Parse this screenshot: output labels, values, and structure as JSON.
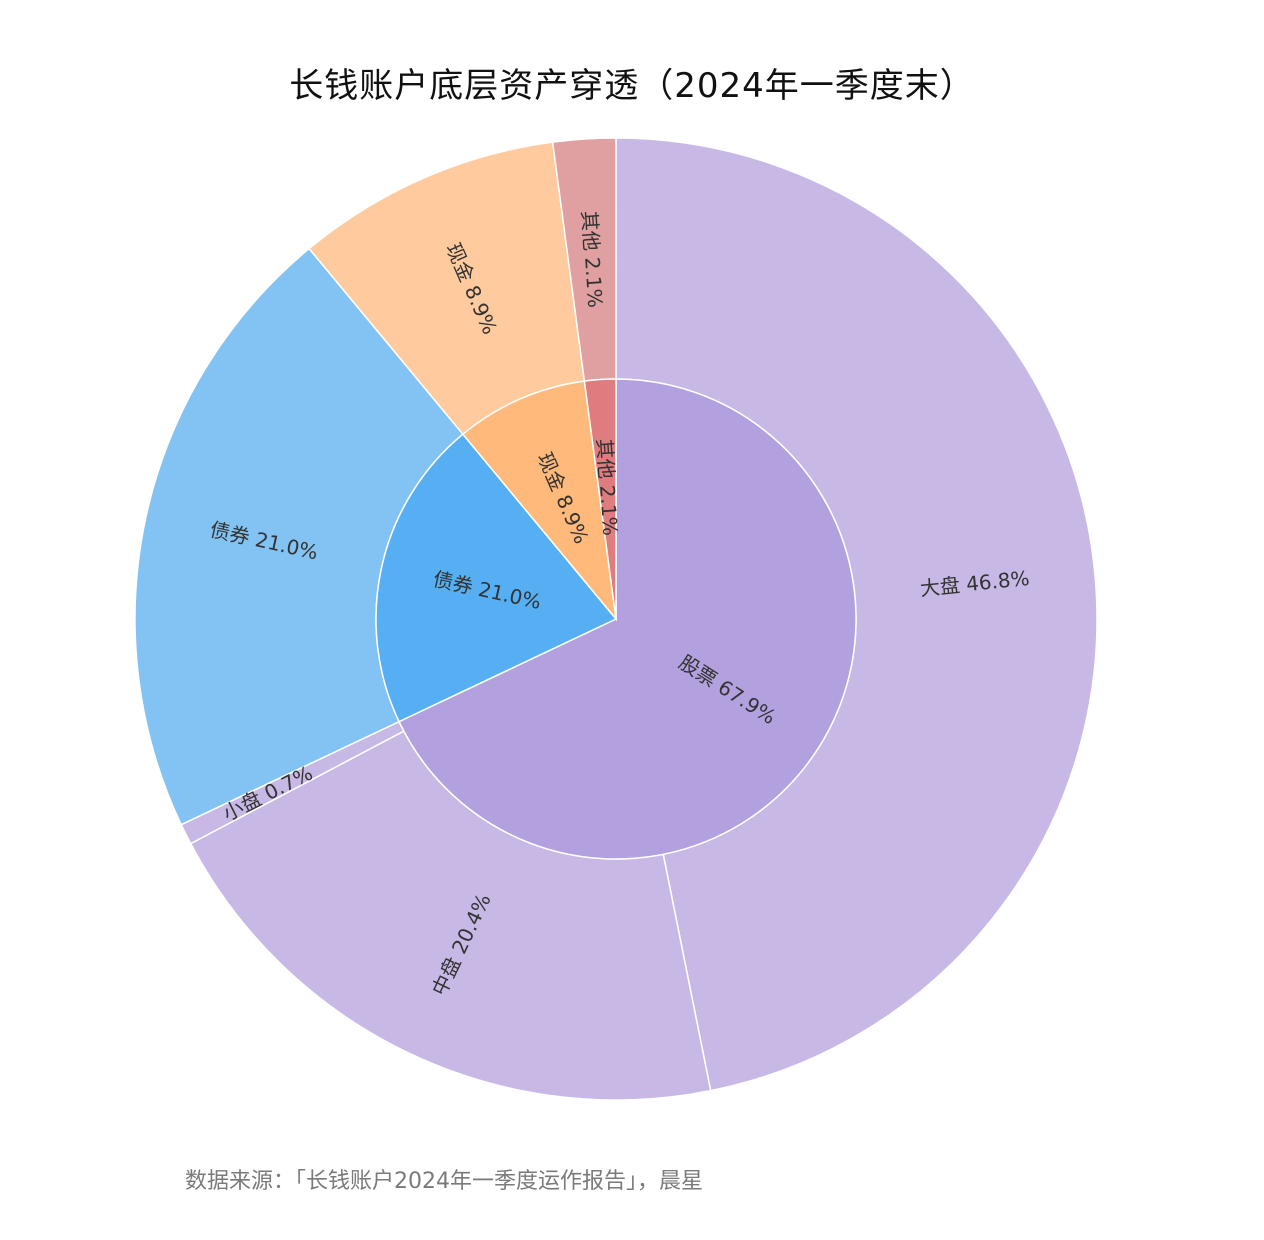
{
  "title": "长钱账户底层资产穿透（2024年一季度末）",
  "source": "数据来源：「长钱账户2024年一季度运作报告」，晨星",
  "chart_data": {
    "type": "sunburst",
    "inner": [
      {
        "name": "股票",
        "label": "股票 67.9%",
        "value": 67.9,
        "color": "#B3A0DE"
      },
      {
        "name": "债券",
        "label": "债券 21.0%",
        "value": 21.0,
        "color": "#55AFF2"
      },
      {
        "name": "现金",
        "label": "现金 8.9%",
        "value": 8.9,
        "color": "#FFB97A"
      },
      {
        "name": "其他",
        "label": "其他 2.1%",
        "value": 2.1,
        "color": "#DE7C80"
      }
    ],
    "outer": [
      {
        "name": "大盘",
        "label": "大盘 46.8%",
        "value": 46.8,
        "color": "#C8B8E6"
      },
      {
        "name": "中盘",
        "label": "中盘 20.4%",
        "value": 20.4,
        "color": "#C8B8E6"
      },
      {
        "name": "小盘",
        "label": "小盘 0.7%",
        "value": 0.7,
        "color": "#C8B8E6"
      },
      {
        "name": "债券",
        "label": "债券 21.0%",
        "value": 21.0,
        "color": "#82C3F4"
      },
      {
        "name": "现金",
        "label": "现金 8.9%",
        "value": 8.9,
        "color": "#FFCA9E"
      },
      {
        "name": "其他",
        "label": "其他 2.1%",
        "value": 2.1,
        "color": "#E09FA0"
      }
    ]
  }
}
